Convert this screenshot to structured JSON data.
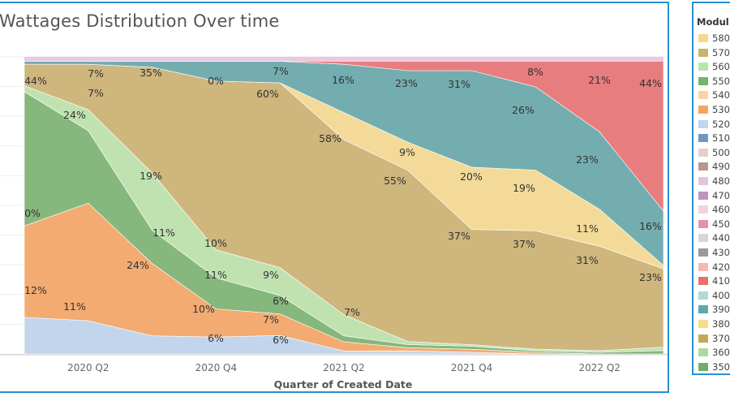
{
  "title": "Wattages Distribution Over time",
  "legend": {
    "title": "Modul",
    "items": [
      {
        "label": "580",
        "color": "#f5d98f"
      },
      {
        "label": "570",
        "color": "#c9b36c"
      },
      {
        "label": "560",
        "color": "#b8e6a8"
      },
      {
        "label": "550",
        "color": "#74b46b"
      },
      {
        "label": "540",
        "color": "#ffd1a3"
      },
      {
        "label": "530",
        "color": "#f4a65e"
      },
      {
        "label": "520",
        "color": "#bcd7ef"
      },
      {
        "label": "510",
        "color": "#7096c4"
      },
      {
        "label": "500",
        "color": "#e8cfc8"
      },
      {
        "label": "490",
        "color": "#b8978f"
      },
      {
        "label": "480",
        "color": "#e2c4e0"
      },
      {
        "label": "470",
        "color": "#c294bc"
      },
      {
        "label": "460",
        "color": "#f8d0dc"
      },
      {
        "label": "450",
        "color": "#e68fad"
      },
      {
        "label": "440",
        "color": "#d6d6d6"
      },
      {
        "label": "430",
        "color": "#9a9a9a"
      },
      {
        "label": "420",
        "color": "#f6b8b4"
      },
      {
        "label": "410",
        "color": "#e8706e"
      },
      {
        "label": "400",
        "color": "#b2d8d8"
      },
      {
        "label": "390",
        "color": "#5fa8a8"
      },
      {
        "label": "380",
        "color": "#f5dd8c"
      },
      {
        "label": "370",
        "color": "#c2a956"
      },
      {
        "label": "360",
        "color": "#a8dba0"
      },
      {
        "label": "350",
        "color": "#6fae68"
      }
    ]
  },
  "chart_data": {
    "type": "area",
    "stacked": "100%",
    "title": "Wattages Distribution Over time",
    "xlabel": "Quarter of Created Date",
    "ylabel": "",
    "x_tick_labels": [
      "2020 Q2",
      "2020 Q4",
      "2021 Q2",
      "2021 Q4",
      "2022 Q2"
    ],
    "x": [
      "2020 Q1",
      "2020 Q2",
      "2020 Q3",
      "2020 Q4",
      "2021 Q1",
      "2021 Q2",
      "2021 Q3",
      "2021 Q4",
      "2022 Q1",
      "2022 Q2",
      "2022 Q3"
    ],
    "ylim": [
      0,
      1
    ],
    "series": [
      {
        "name": "520",
        "color": "#bcd7ef",
        "values": [
          12,
          11,
          6,
          6,
          6,
          1,
          1,
          0.5,
          0,
          0,
          0
        ]
      },
      {
        "name": "530",
        "color": "#f4a65e",
        "values": [
          30,
          39,
          24,
          10,
          7,
          3,
          1,
          1,
          0.5,
          0,
          0
        ]
      },
      {
        "name": "550",
        "color": "#74b46b",
        "values": [
          44,
          24,
          11,
          11,
          6,
          2,
          1,
          1,
          0.5,
          0.5,
          1
        ]
      },
      {
        "name": "560",
        "color": "#b8e6a8",
        "values": [
          2,
          7,
          19,
          10,
          9,
          7,
          1,
          0.5,
          0.5,
          0.5,
          1
        ]
      },
      {
        "name": "570",
        "color": "#c9b36c",
        "values": [
          7,
          15,
          35,
          60,
          60,
          58,
          55,
          37,
          37,
          31,
          23
        ]
      },
      {
        "name": "380",
        "color": "#f5dd8c",
        "values": [
          0,
          0,
          0,
          0,
          0,
          9,
          9,
          20,
          19,
          11,
          1
        ]
      },
      {
        "name": "390",
        "color": "#5fa8a8",
        "values": [
          1,
          1,
          2,
          7,
          7,
          16,
          23,
          31,
          26,
          23,
          16
        ]
      },
      {
        "name": "410",
        "color": "#e8706e",
        "values": [
          0,
          0,
          0,
          0,
          0,
          1,
          3,
          3,
          8,
          21,
          44
        ]
      }
    ],
    "data_labels": [
      {
        "x": "2020 Q1",
        "text": "44%"
      },
      {
        "x": "2020 Q1",
        "text": "0%"
      },
      {
        "x": "2020 Q1",
        "text": "12%"
      },
      {
        "x": "2020 Q2",
        "text": "7%"
      },
      {
        "x": "2020 Q2",
        "text": "7%"
      },
      {
        "x": "2020 Q2",
        "text": "24%"
      },
      {
        "x": "2020 Q2",
        "text": "11%"
      },
      {
        "x": "2020 Q3",
        "text": "35%"
      },
      {
        "x": "2020 Q3",
        "text": "19%"
      },
      {
        "x": "2020 Q3",
        "text": "11%"
      },
      {
        "x": "2020 Q3",
        "text": "24%"
      },
      {
        "x": "2020 Q4",
        "text": "0%"
      },
      {
        "x": "2020 Q4",
        "text": "10%"
      },
      {
        "x": "2020 Q4",
        "text": "11%"
      },
      {
        "x": "2020 Q4",
        "text": "10%"
      },
      {
        "x": "2020 Q4",
        "text": "6%"
      },
      {
        "x": "2021 Q1",
        "text": "7%"
      },
      {
        "x": "2021 Q1",
        "text": "60%"
      },
      {
        "x": "2021 Q1",
        "text": "9%"
      },
      {
        "x": "2021 Q1",
        "text": "6%"
      },
      {
        "x": "2021 Q1",
        "text": "7%"
      },
      {
        "x": "2021 Q1",
        "text": "6%"
      },
      {
        "x": "2021 Q2",
        "text": "16%"
      },
      {
        "x": "2021 Q2",
        "text": "58%"
      },
      {
        "x": "2021 Q2",
        "text": "7%"
      },
      {
        "x": "2021 Q3",
        "text": "23%"
      },
      {
        "x": "2021 Q3",
        "text": "9%"
      },
      {
        "x": "2021 Q3",
        "text": "55%"
      },
      {
        "x": "2021 Q4",
        "text": "31%"
      },
      {
        "x": "2021 Q4",
        "text": "20%"
      },
      {
        "x": "2021 Q4",
        "text": "37%"
      },
      {
        "x": "2022 Q1",
        "text": "8%"
      },
      {
        "x": "2022 Q1",
        "text": "26%"
      },
      {
        "x": "2022 Q1",
        "text": "19%"
      },
      {
        "x": "2022 Q1",
        "text": "37%"
      },
      {
        "x": "2022 Q2",
        "text": "21%"
      },
      {
        "x": "2022 Q2",
        "text": "23%"
      },
      {
        "x": "2022 Q2",
        "text": "11%"
      },
      {
        "x": "2022 Q2",
        "text": "31%"
      },
      {
        "x": "2022 Q3",
        "text": "44%"
      },
      {
        "x": "2022 Q3",
        "text": "16%"
      },
      {
        "x": "2022 Q3",
        "text": "23%"
      }
    ],
    "grid": true,
    "legend_position": "right"
  }
}
